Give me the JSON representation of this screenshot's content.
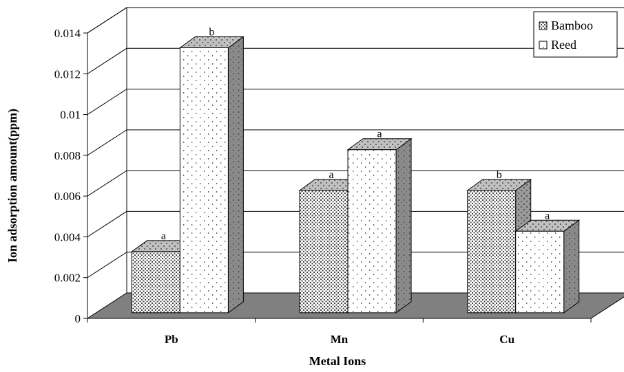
{
  "chart_data": {
    "type": "bar",
    "categories": [
      "Pb",
      "Mn",
      "Cu"
    ],
    "series": [
      {
        "name": "Bamboo",
        "values": [
          0.003,
          0.006,
          0.006
        ],
        "significance": [
          "a",
          "a",
          "b"
        ]
      },
      {
        "name": "Reed",
        "values": [
          0.013,
          0.008,
          0.004
        ],
        "significance": [
          "b",
          "a",
          "a"
        ]
      }
    ],
    "xlabel": "Metal Ions",
    "ylabel": "Ion adsorption amount(ppm)",
    "ylim": [
      0,
      0.014
    ],
    "yticks": [
      "0",
      "0.002",
      "0.004",
      "0.006",
      "0.008",
      "0.01",
      "0.012",
      "0.014"
    ],
    "legend": {
      "position": "top-right"
    },
    "grid": true,
    "style": "3d-clustered-column",
    "colors": {
      "floor": "#808080",
      "bar_fill": "#ffffff",
      "bamboo_side": "#9a9a9a",
      "reed_side": "#8a8a8a",
      "top": "#c0c0c0",
      "grid": "#000000"
    }
  }
}
